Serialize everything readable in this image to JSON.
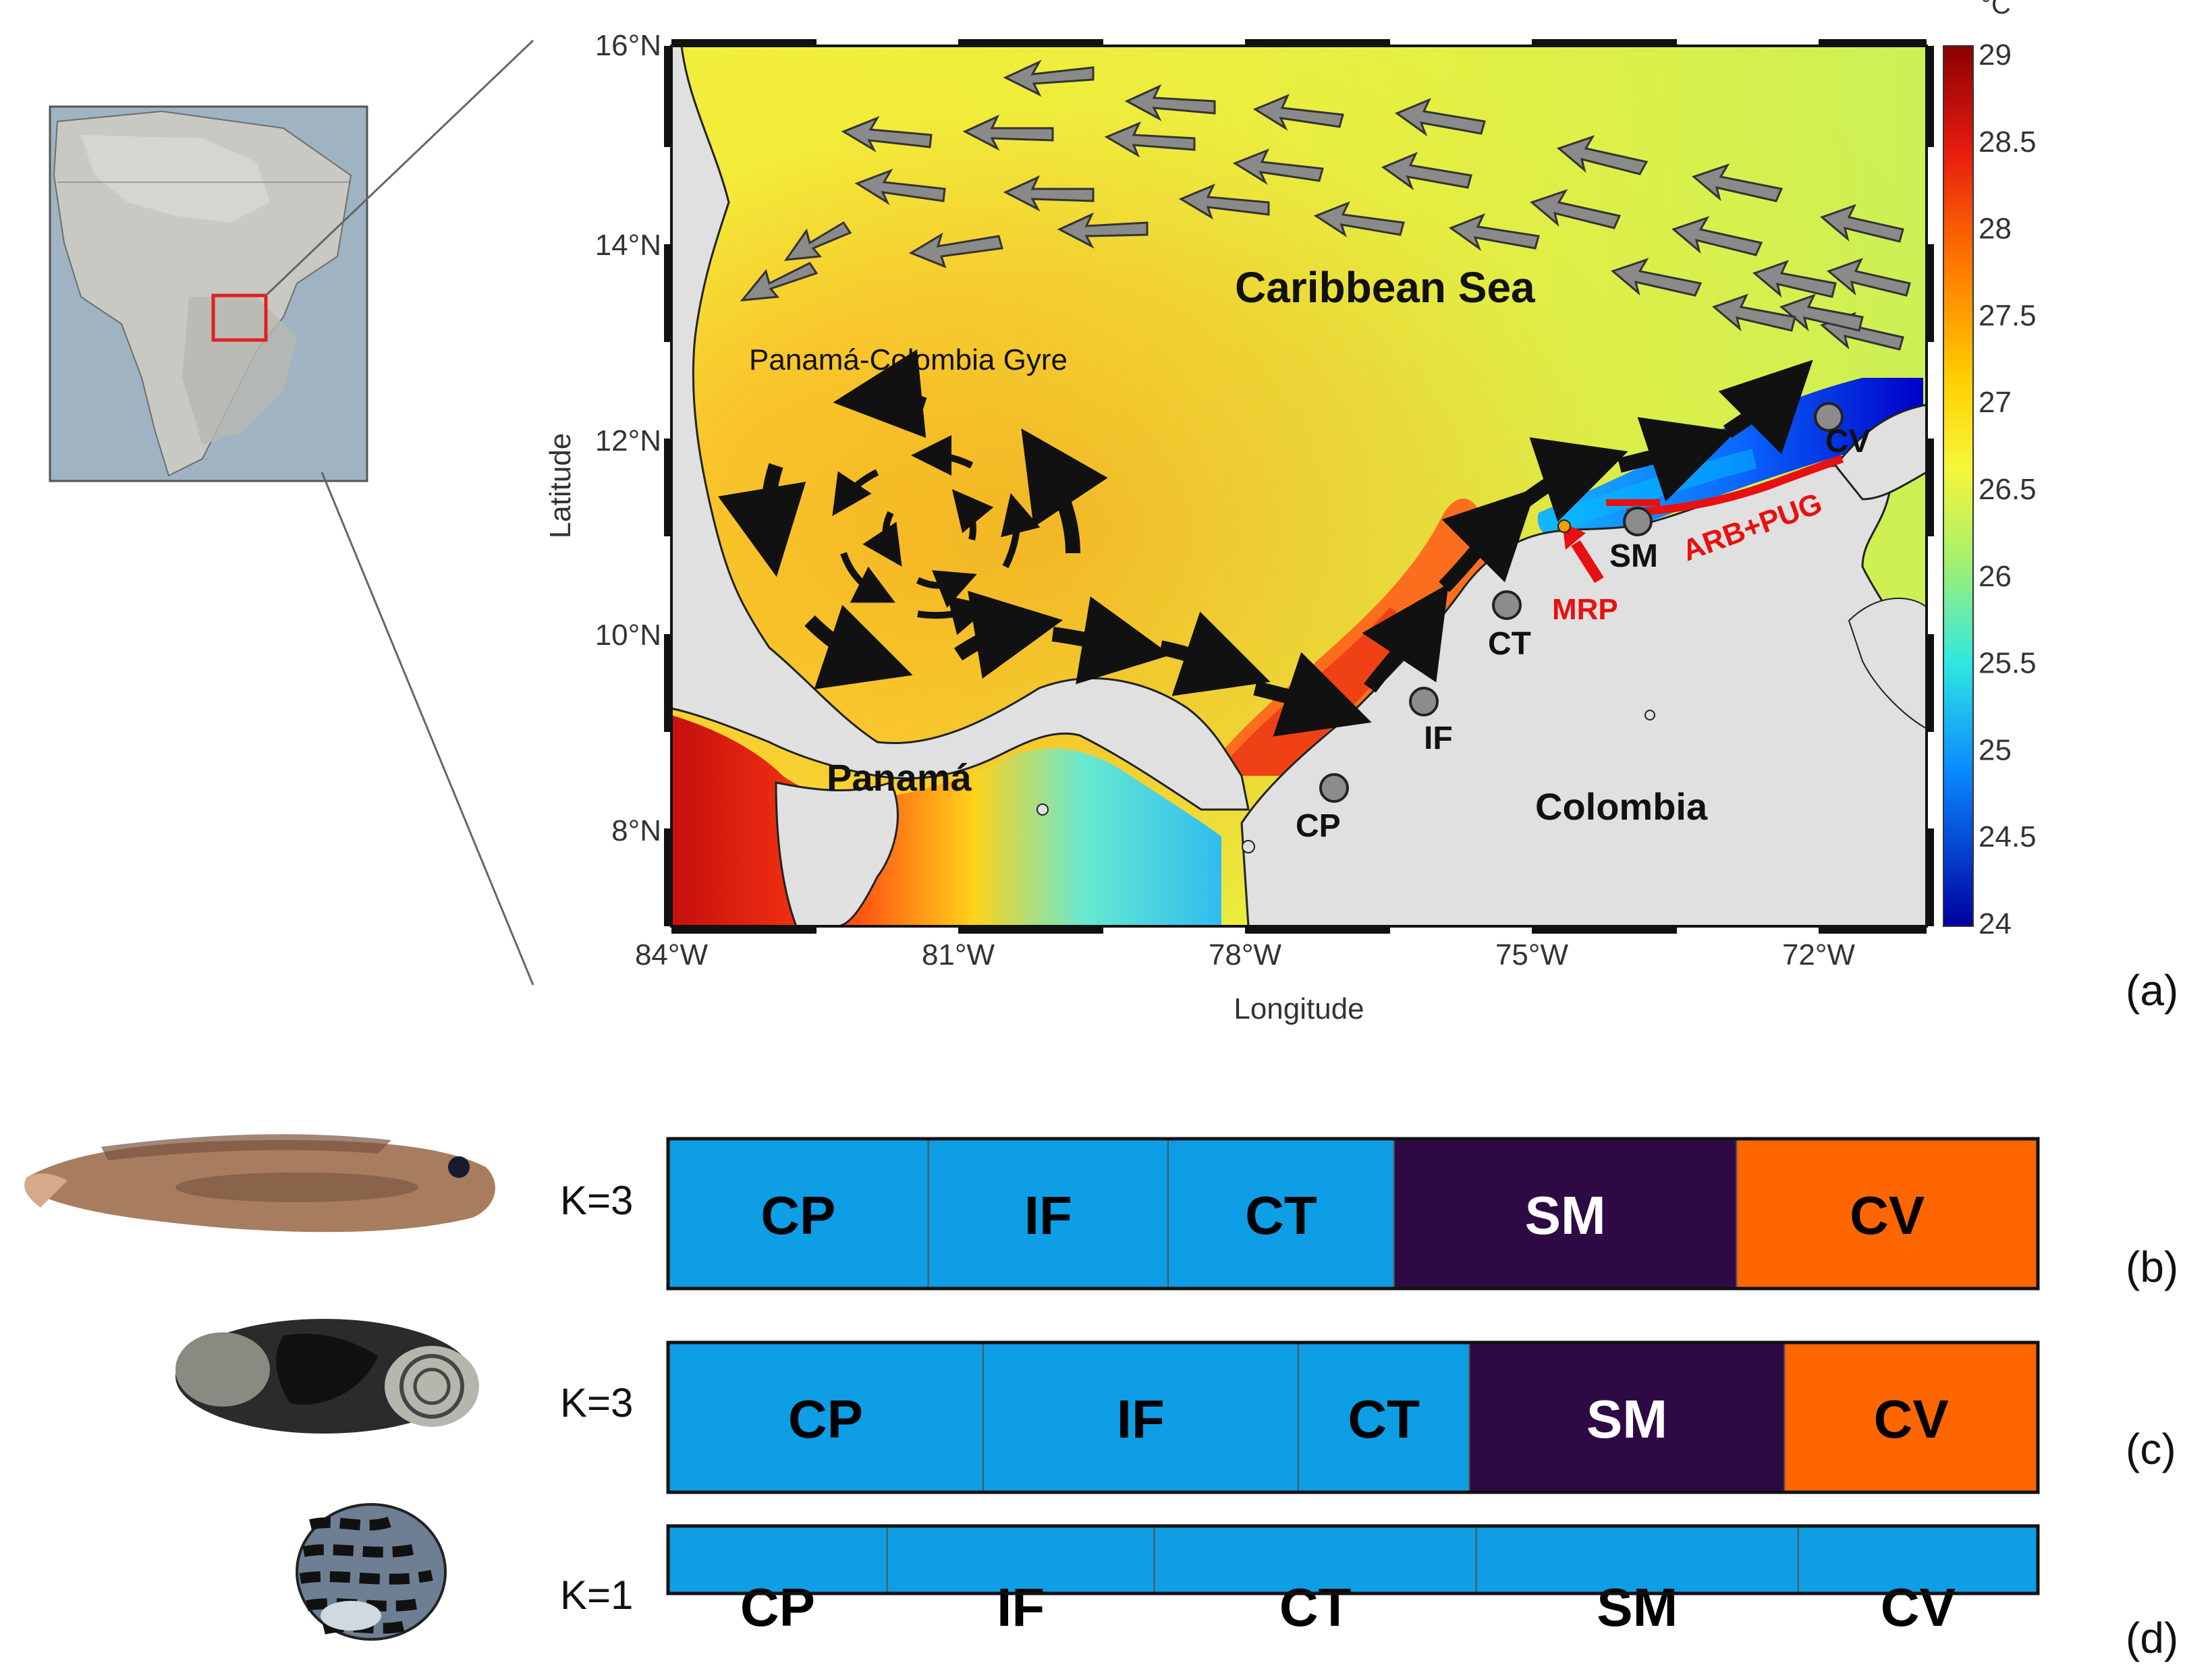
{
  "colorbar": {
    "unit": "°C",
    "ticks": [
      "29",
      "28.5",
      "28",
      "27.5",
      "27",
      "26.5",
      "26",
      "25.5",
      "25",
      "24.5",
      "24"
    ]
  },
  "axes": {
    "xlabel": "Longitude",
    "ylabel": "Latitude",
    "xticks": [
      "84°W",
      "81°W",
      "78°W",
      "75°W",
      "72°W"
    ],
    "yticks": [
      "16°N",
      "14°N",
      "12°N",
      "10°N",
      "8°N"
    ]
  },
  "map_labels": {
    "sea": "Caribbean Sea",
    "gyre": "Panamá-Colombia Gyre",
    "panama": "Panamá",
    "colombia": "Colombia",
    "mrp": "MRP",
    "arb": "ARB+PUG"
  },
  "sites": [
    "CP",
    "IF",
    "CT",
    "SM",
    "CV"
  ],
  "panels": {
    "a": "(a)",
    "b": "(b)",
    "c": "(c)",
    "d": "(d)"
  },
  "structure_plots": [
    {
      "id": "b",
      "k_label": "K=3",
      "clusters": [
        "CP",
        "IF",
        "CT",
        "SM",
        "CV"
      ],
      "colors": [
        "#0d9ee6",
        "#0d9ee6",
        "#0d9ee6",
        "#2e0a45",
        "#ff6600"
      ],
      "label_colors": [
        "#000000",
        "#000000",
        "#000000",
        "#ffffff",
        "#000000"
      ]
    },
    {
      "id": "c",
      "k_label": "K=3",
      "clusters": [
        "CP",
        "IF",
        "CT",
        "SM",
        "CV"
      ],
      "colors": [
        "#0d9ee6",
        "#0d9ee6",
        "#0d9ee6",
        "#2e0a45",
        "#ff6600"
      ],
      "label_colors": [
        "#000000",
        "#000000",
        "#000000",
        "#ffffff",
        "#000000"
      ]
    },
    {
      "id": "d",
      "k_label": "K=1",
      "clusters": [
        "CP",
        "IF",
        "CT",
        "SM",
        "CV"
      ],
      "colors": [
        "#0d9ee6",
        "#0d9ee6",
        "#0d9ee6",
        "#0d9ee6",
        "#0d9ee6"
      ],
      "label_colors": [
        "#000000",
        "#000000",
        "#000000",
        "#000000",
        "#000000"
      ]
    }
  ]
}
